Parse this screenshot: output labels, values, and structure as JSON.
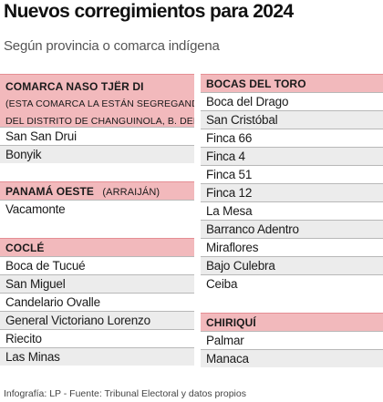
{
  "title": "Nuevos corregimientos para 2024",
  "subtitle": "Según provincia o comarca indígena",
  "left": {
    "naso": {
      "header": "COMARCA NASO TJËR DI",
      "note_line1": "(ESTA COMARCA LA ESTÁN SEGREGANDO DEL",
      "note_line2": "DEL DISTRITO DE CHANGUINOLA, B. DEL TORO)",
      "items": [
        "San San Drui",
        "Bonyik"
      ]
    },
    "panama_oeste": {
      "header": "PANAMÁ OESTE",
      "note": "(ARRAIJÁN)",
      "items": [
        "Vacamonte"
      ]
    },
    "cocle": {
      "header": "COCLÉ",
      "items": [
        "Boca de Tucué",
        "San Miguel",
        "Candelario Ovalle",
        "General Victoriano Lorenzo",
        "Riecito",
        "Las Minas"
      ]
    }
  },
  "right": {
    "bocas": {
      "header": "BOCAS DEL TORO",
      "items": [
        "Boca del Drago",
        "San Cristóbal",
        "Finca 66",
        "Finca 4",
        "Finca 51",
        "Finca 12",
        "La Mesa",
        "Barranco Adentro",
        "Miraflores",
        "Bajo Culebra",
        "Ceiba"
      ]
    },
    "chiriqui": {
      "header": "CHIRIQUÍ",
      "items": [
        "Palmar",
        "Manaca"
      ]
    }
  },
  "footer": "Infografía: LP - Fuente: Tribunal Electoral y datos propios"
}
